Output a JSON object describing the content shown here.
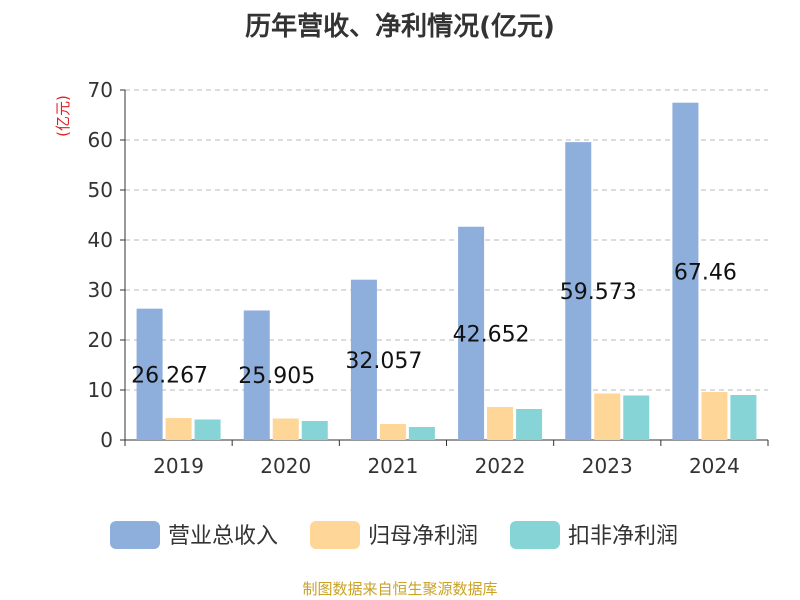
{
  "chart_data": {
    "type": "bar",
    "title": "历年营收、净利情况(亿元)",
    "ylabel": "(亿元)",
    "categories": [
      "2019",
      "2020",
      "2021",
      "2022",
      "2023",
      "2024"
    ],
    "ylim": [
      0,
      70
    ],
    "yticks": [
      0,
      10,
      20,
      30,
      40,
      50,
      60,
      70
    ],
    "grid": true,
    "legend_position": "bottom",
    "series": [
      {
        "name": "营业总收入",
        "color": "#8eaedb",
        "values": [
          26.267,
          25.905,
          32.057,
          42.652,
          59.573,
          67.46
        ],
        "labels": [
          "26.267",
          "25.905",
          "32.057",
          "42.652",
          "59.573",
          "67.46"
        ]
      },
      {
        "name": "归母净利润",
        "color": "#fdd698",
        "values": [
          4.4,
          4.3,
          3.2,
          6.6,
          9.3,
          9.6
        ]
      },
      {
        "name": "扣非净利润",
        "color": "#86d4d6",
        "values": [
          4.1,
          3.8,
          2.6,
          6.2,
          8.9,
          9.0
        ]
      }
    ]
  },
  "footer": {
    "source": "制图数据来自恒生聚源数据库"
  }
}
